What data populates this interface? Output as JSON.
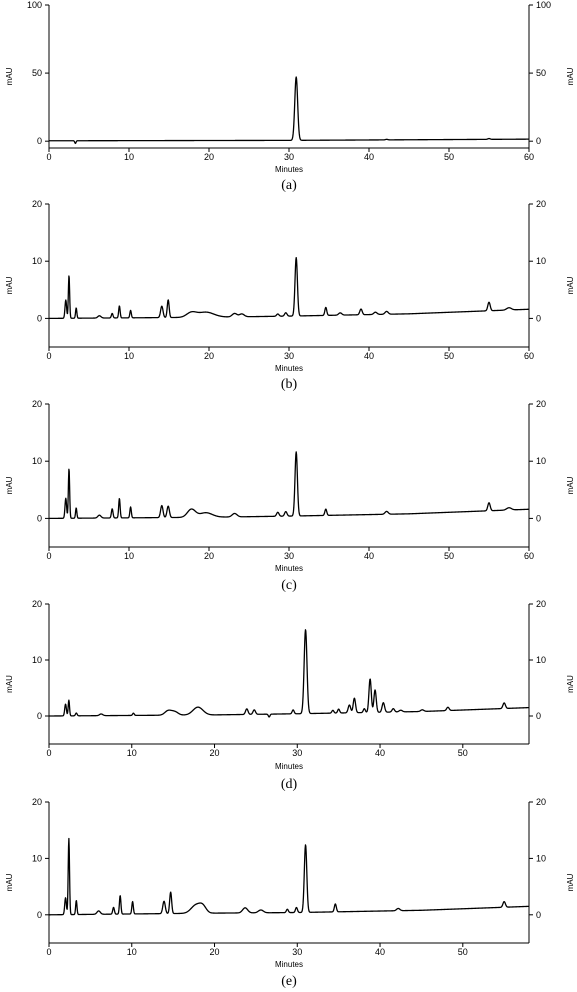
{
  "chart_data": [
    {
      "type": "line",
      "caption": "(a)",
      "xlabel": "Minutes",
      "ylabel": "mAU",
      "xlim": [
        0,
        60
      ],
      "ylim": [
        -5,
        100
      ],
      "x_ticks": [
        0,
        10,
        20,
        30,
        40,
        50,
        60
      ],
      "y_ticks": [
        0,
        50,
        100
      ],
      "grid": false,
      "baseline": [
        [
          0,
          0.3
        ],
        [
          30,
          0.6
        ],
        [
          60,
          1.5
        ]
      ],
      "peaks": [
        {
          "x": 3.3,
          "y": -2.0,
          "w": 0.08
        },
        {
          "x": 30.9,
          "y": 46.5,
          "w": 0.18
        },
        {
          "x": 42.2,
          "y": 0.4,
          "w": 0.15
        },
        {
          "x": 55.0,
          "y": 0.6,
          "w": 0.15
        }
      ]
    },
    {
      "type": "line",
      "caption": "(b)",
      "xlabel": "Minutes",
      "ylabel": "mAU",
      "xlim": [
        0,
        60
      ],
      "ylim": [
        -5,
        20
      ],
      "x_ticks": [
        0,
        10,
        20,
        30,
        40,
        50,
        60
      ],
      "y_ticks": [
        0,
        10,
        20
      ],
      "grid": false,
      "baseline": [
        [
          0,
          0.0
        ],
        [
          20,
          0.2
        ],
        [
          30,
          0.4
        ],
        [
          45,
          0.8
        ],
        [
          60,
          1.6
        ]
      ],
      "peaks": [
        {
          "x": 2.1,
          "y": 3.2,
          "w": 0.1
        },
        {
          "x": 2.5,
          "y": 7.5,
          "w": 0.08
        },
        {
          "x": 3.4,
          "y": 1.8,
          "w": 0.08
        },
        {
          "x": 6.3,
          "y": 0.4,
          "w": 0.2
        },
        {
          "x": 7.9,
          "y": 0.8,
          "w": 0.1
        },
        {
          "x": 8.8,
          "y": 2.1,
          "w": 0.09
        },
        {
          "x": 10.2,
          "y": 1.3,
          "w": 0.09
        },
        {
          "x": 14.1,
          "y": 2.0,
          "w": 0.15
        },
        {
          "x": 14.9,
          "y": 3.1,
          "w": 0.12
        },
        {
          "x": 17.8,
          "y": 0.8,
          "w": 0.6
        },
        {
          "x": 19.6,
          "y": 0.9,
          "w": 1.0
        },
        {
          "x": 23.2,
          "y": 0.6,
          "w": 0.3
        },
        {
          "x": 24.1,
          "y": 0.5,
          "w": 0.3
        },
        {
          "x": 28.6,
          "y": 0.4,
          "w": 0.15
        },
        {
          "x": 29.6,
          "y": 0.6,
          "w": 0.15
        },
        {
          "x": 30.9,
          "y": 10.2,
          "w": 0.15
        },
        {
          "x": 34.6,
          "y": 1.4,
          "w": 0.12
        },
        {
          "x": 36.4,
          "y": 0.4,
          "w": 0.2
        },
        {
          "x": 39.0,
          "y": 1.0,
          "w": 0.15
        },
        {
          "x": 40.8,
          "y": 0.4,
          "w": 0.2
        },
        {
          "x": 42.2,
          "y": 0.5,
          "w": 0.2
        },
        {
          "x": 55.0,
          "y": 1.5,
          "w": 0.15
        },
        {
          "x": 57.5,
          "y": 0.4,
          "w": 0.3
        }
      ]
    },
    {
      "type": "line",
      "caption": "(c)",
      "xlabel": "Minutes",
      "ylabel": "mAU",
      "xlim": [
        0,
        60
      ],
      "ylim": [
        -5,
        20
      ],
      "x_ticks": [
        0,
        10,
        20,
        30,
        40,
        50,
        60
      ],
      "y_ticks": [
        0,
        10,
        20
      ],
      "grid": false,
      "baseline": [
        [
          0,
          0.0
        ],
        [
          20,
          0.2
        ],
        [
          30,
          0.4
        ],
        [
          45,
          0.8
        ],
        [
          60,
          1.6
        ]
      ],
      "peaks": [
        {
          "x": 2.1,
          "y": 3.5,
          "w": 0.1
        },
        {
          "x": 2.5,
          "y": 8.7,
          "w": 0.08
        },
        {
          "x": 3.4,
          "y": 1.8,
          "w": 0.08
        },
        {
          "x": 6.3,
          "y": 0.5,
          "w": 0.2
        },
        {
          "x": 7.9,
          "y": 1.6,
          "w": 0.1
        },
        {
          "x": 8.8,
          "y": 3.4,
          "w": 0.09
        },
        {
          "x": 10.2,
          "y": 1.9,
          "w": 0.09
        },
        {
          "x": 14.1,
          "y": 2.1,
          "w": 0.15
        },
        {
          "x": 14.9,
          "y": 2.0,
          "w": 0.15
        },
        {
          "x": 17.8,
          "y": 1.4,
          "w": 0.5
        },
        {
          "x": 19.6,
          "y": 0.8,
          "w": 0.8
        },
        {
          "x": 23.2,
          "y": 0.6,
          "w": 0.3
        },
        {
          "x": 28.6,
          "y": 0.7,
          "w": 0.15
        },
        {
          "x": 29.6,
          "y": 0.8,
          "w": 0.15
        },
        {
          "x": 30.9,
          "y": 11.2,
          "w": 0.15
        },
        {
          "x": 34.6,
          "y": 1.1,
          "w": 0.12
        },
        {
          "x": 42.2,
          "y": 0.5,
          "w": 0.2
        },
        {
          "x": 55.0,
          "y": 1.4,
          "w": 0.15
        },
        {
          "x": 57.5,
          "y": 0.4,
          "w": 0.3
        }
      ]
    },
    {
      "type": "line",
      "caption": "(d)",
      "xlabel": "Minutes",
      "ylabel": "mAU",
      "xlim": [
        0,
        58
      ],
      "ylim": [
        -5,
        20
      ],
      "x_ticks": [
        0,
        10,
        20,
        30,
        40,
        50
      ],
      "y_ticks": [
        0,
        10,
        20
      ],
      "grid": false,
      "baseline": [
        [
          0,
          0.0
        ],
        [
          20,
          0.2
        ],
        [
          30,
          0.4
        ],
        [
          45,
          0.8
        ],
        [
          58,
          1.5
        ]
      ],
      "peaks": [
        {
          "x": 2.0,
          "y": 2.1,
          "w": 0.1
        },
        {
          "x": 2.4,
          "y": 2.8,
          "w": 0.08
        },
        {
          "x": 3.3,
          "y": 0.5,
          "w": 0.1
        },
        {
          "x": 6.3,
          "y": 0.3,
          "w": 0.2
        },
        {
          "x": 10.2,
          "y": 0.4,
          "w": 0.1
        },
        {
          "x": 14.4,
          "y": 0.8,
          "w": 0.4
        },
        {
          "x": 15.2,
          "y": 0.6,
          "w": 0.4
        },
        {
          "x": 18.0,
          "y": 1.4,
          "w": 0.6
        },
        {
          "x": 23.9,
          "y": 1.0,
          "w": 0.15
        },
        {
          "x": 24.8,
          "y": 0.8,
          "w": 0.15
        },
        {
          "x": 26.6,
          "y": -0.5,
          "w": 0.1
        },
        {
          "x": 29.5,
          "y": 0.7,
          "w": 0.12
        },
        {
          "x": 31.0,
          "y": 15.0,
          "w": 0.17
        },
        {
          "x": 34.3,
          "y": 0.5,
          "w": 0.12
        },
        {
          "x": 35.0,
          "y": 0.7,
          "w": 0.12
        },
        {
          "x": 36.3,
          "y": 1.4,
          "w": 0.15
        },
        {
          "x": 36.9,
          "y": 2.6,
          "w": 0.14
        },
        {
          "x": 38.1,
          "y": 0.7,
          "w": 0.12
        },
        {
          "x": 38.8,
          "y": 6.0,
          "w": 0.14
        },
        {
          "x": 39.4,
          "y": 4.0,
          "w": 0.14
        },
        {
          "x": 40.4,
          "y": 1.7,
          "w": 0.15
        },
        {
          "x": 41.6,
          "y": 0.6,
          "w": 0.15
        },
        {
          "x": 42.5,
          "y": 0.3,
          "w": 0.2
        },
        {
          "x": 45.1,
          "y": 0.3,
          "w": 0.2
        },
        {
          "x": 48.2,
          "y": 0.6,
          "w": 0.15
        },
        {
          "x": 55.0,
          "y": 1.0,
          "w": 0.15
        }
      ]
    },
    {
      "type": "line",
      "caption": "(e)",
      "xlabel": "Minutes",
      "ylabel": "mAU",
      "xlim": [
        0,
        58
      ],
      "ylim": [
        -5,
        20
      ],
      "x_ticks": [
        0,
        10,
        20,
        30,
        40,
        50
      ],
      "y_ticks": [
        0,
        10,
        20
      ],
      "grid": false,
      "baseline": [
        [
          0,
          0.0
        ],
        [
          20,
          0.3
        ],
        [
          30,
          0.4
        ],
        [
          45,
          0.8
        ],
        [
          58,
          1.5
        ]
      ],
      "peaks": [
        {
          "x": 2.0,
          "y": 3.0,
          "w": 0.1
        },
        {
          "x": 2.4,
          "y": 13.5,
          "w": 0.08
        },
        {
          "x": 3.3,
          "y": 2.5,
          "w": 0.08
        },
        {
          "x": 6.0,
          "y": 0.6,
          "w": 0.2
        },
        {
          "x": 7.8,
          "y": 1.2,
          "w": 0.1
        },
        {
          "x": 8.6,
          "y": 3.3,
          "w": 0.09
        },
        {
          "x": 10.1,
          "y": 2.2,
          "w": 0.09
        },
        {
          "x": 13.9,
          "y": 2.2,
          "w": 0.15
        },
        {
          "x": 14.7,
          "y": 3.8,
          "w": 0.12
        },
        {
          "x": 17.8,
          "y": 1.5,
          "w": 0.6
        },
        {
          "x": 18.6,
          "y": 1.0,
          "w": 0.4
        },
        {
          "x": 23.7,
          "y": 0.9,
          "w": 0.3
        },
        {
          "x": 25.6,
          "y": 0.5,
          "w": 0.3
        },
        {
          "x": 28.8,
          "y": 0.6,
          "w": 0.12
        },
        {
          "x": 29.9,
          "y": 0.9,
          "w": 0.12
        },
        {
          "x": 31.0,
          "y": 12.0,
          "w": 0.15
        },
        {
          "x": 34.6,
          "y": 1.4,
          "w": 0.12
        },
        {
          "x": 42.2,
          "y": 0.4,
          "w": 0.2
        },
        {
          "x": 55.0,
          "y": 1.0,
          "w": 0.15
        }
      ]
    }
  ]
}
